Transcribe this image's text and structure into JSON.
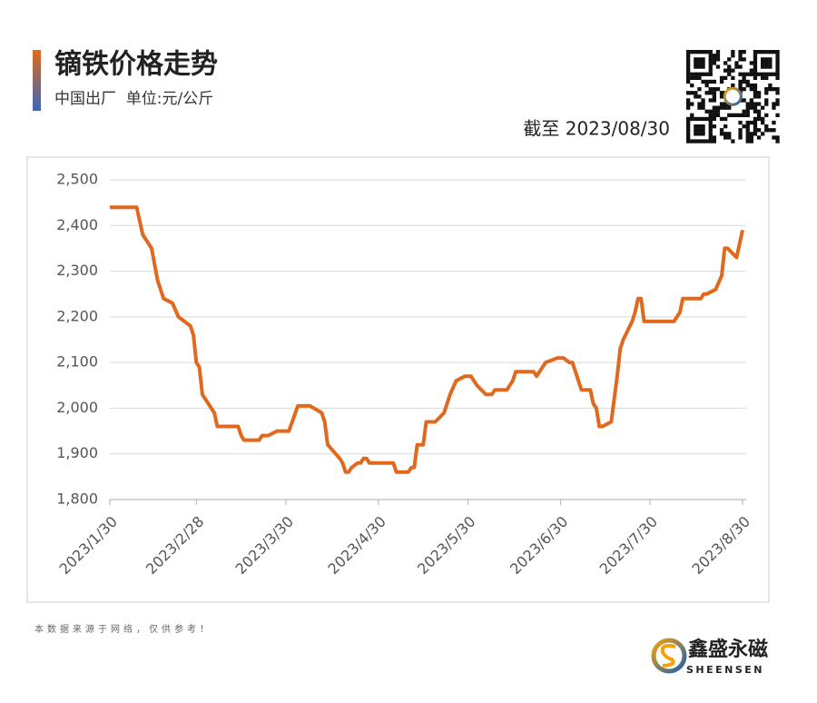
{
  "chart_data": {
    "type": "line",
    "title": "镝铁价格走势",
    "subtitle": "中国出厂  单位:元/公斤",
    "as_of": "截至 2023/08/30",
    "color": "#e0691d",
    "x": [
      "2023/1/30",
      "2023/2/8",
      "2023/2/10",
      "2023/2/13",
      "2023/2/15",
      "2023/2/17",
      "2023/2/20",
      "2023/2/22",
      "2023/2/26",
      "2023/2/27",
      "2023/2/28",
      "2023/3/1",
      "2023/3/2",
      "2023/3/6",
      "2023/3/7",
      "2023/3/14",
      "2023/3/15",
      "2023/3/16",
      "2023/3/21",
      "2023/3/22",
      "2023/3/24",
      "2023/3/27",
      "2023/3/31",
      "2023/4/3",
      "2023/4/7",
      "2023/4/11",
      "2023/4/12",
      "2023/4/13",
      "2023/4/17",
      "2023/4/18",
      "2023/4/19",
      "2023/4/20",
      "2023/4/21",
      "2023/4/23",
      "2023/4/24",
      "2023/4/25",
      "2023/4/26",
      "2023/4/27",
      "2023/5/5",
      "2023/5/6",
      "2023/5/10",
      "2023/5/11",
      "2023/5/12",
      "2023/5/13",
      "2023/5/15",
      "2023/5/16",
      "2023/5/19",
      "2023/5/22",
      "2023/5/24",
      "2023/5/26",
      "2023/5/29",
      "2023/5/31",
      "2023/6/2",
      "2023/6/5",
      "2023/6/7",
      "2023/6/8",
      "2023/6/12",
      "2023/6/14",
      "2023/6/15",
      "2023/6/21",
      "2023/6/22",
      "2023/6/25",
      "2023/6/27",
      "2023/6/29",
      "2023/7/1",
      "2023/7/3",
      "2023/7/4",
      "2023/7/6",
      "2023/7/7",
      "2023/7/10",
      "2023/7/11",
      "2023/7/12",
      "2023/7/13",
      "2023/7/14",
      "2023/7/17",
      "2023/7/18",
      "2023/7/19",
      "2023/7/20",
      "2023/7/21",
      "2023/7/24",
      "2023/7/25",
      "2023/7/26",
      "2023/7/27",
      "2023/7/28",
      "2023/8/7",
      "2023/8/9",
      "2023/8/10",
      "2023/8/16",
      "2023/8/17",
      "2023/8/18",
      "2023/8/21",
      "2023/8/23",
      "2023/8/24",
      "2023/8/25",
      "2023/8/28",
      "2023/8/29",
      "2023/8/30"
    ],
    "values": [
      2440,
      2440,
      2380,
      2350,
      2280,
      2240,
      2230,
      2200,
      2180,
      2160,
      2100,
      2090,
      2030,
      1990,
      1960,
      1960,
      1940,
      1930,
      1930,
      1940,
      1940,
      1950,
      1950,
      2005,
      2005,
      1990,
      1970,
      1920,
      1890,
      1880,
      1860,
      1860,
      1870,
      1880,
      1880,
      1890,
      1890,
      1880,
      1880,
      1860,
      1860,
      1870,
      1870,
      1920,
      1920,
      1970,
      1970,
      1990,
      2030,
      2060,
      2070,
      2070,
      2050,
      2030,
      2030,
      2040,
      2040,
      2060,
      2080,
      2080,
      2070,
      2100,
      2105,
      2110,
      2110,
      2100,
      2100,
      2060,
      2040,
      2040,
      2010,
      2000,
      1960,
      1960,
      1970,
      2020,
      2070,
      2130,
      2150,
      2190,
      2210,
      2240,
      2240,
      2190,
      2190,
      2210,
      2240,
      2240,
      2250,
      2250,
      2260,
      2290,
      2350,
      2350,
      2330,
      2360,
      2390
    ],
    "xlim": [
      "2023/1/30",
      "2023/8/30"
    ],
    "xticks": [
      "2023/1/30",
      "2023/2/28",
      "2023/3/30",
      "2023/4/30",
      "2023/5/30",
      "2023/6/30",
      "2023/7/30",
      "2023/8/30"
    ],
    "ylim": [
      1800,
      2500
    ],
    "yticks": [
      {
        "value": 1800,
        "label": "1,800"
      },
      {
        "value": 1900,
        "label": "1,900"
      },
      {
        "value": 2000,
        "label": "2,000"
      },
      {
        "value": 2100,
        "label": "2,100"
      },
      {
        "value": 2200,
        "label": "2,200"
      },
      {
        "value": 2300,
        "label": "2,300"
      },
      {
        "value": 2400,
        "label": "2,400"
      },
      {
        "value": 2500,
        "label": "2,500"
      }
    ],
    "grid": true
  },
  "footer": {
    "note": "本数据来源于网络，仅供参考！",
    "brand": "鑫盛永磁",
    "brand_en": "SHEENSEN"
  }
}
